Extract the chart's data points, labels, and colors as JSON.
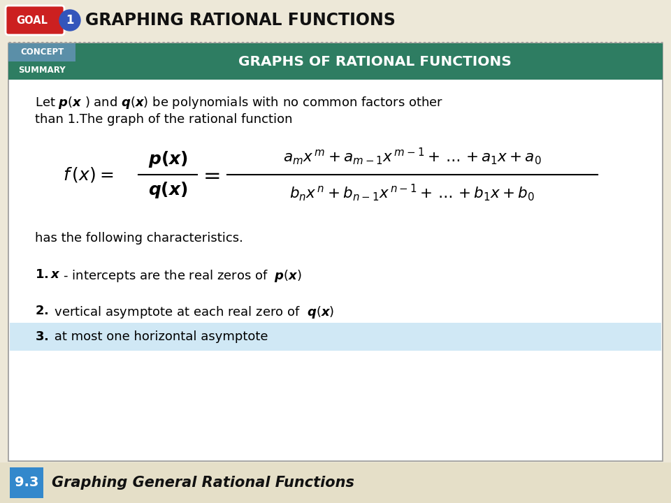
{
  "title": "GRAPHING RATIONAL FUNCTIONS",
  "concept_label": "CONCEPT",
  "summary_label": "SUMMARY",
  "header_title": "GRAPHS OF RATIONAL FUNCTIONS",
  "outer_bg": "#ede8d8",
  "header_bg": "#2e7d62",
  "concept_bg": "#5b8fa8",
  "summary_bg": "#2e7d62",
  "highlight_bg": "#d0e8f5",
  "footer_bg": "#e5dfc8",
  "goal_red": "#cc2020",
  "goal_blue": "#3355bb",
  "footer_blue": "#3388cc",
  "footer_section_label": "9.3",
  "footer_text": "Graphing General Rational Functions"
}
